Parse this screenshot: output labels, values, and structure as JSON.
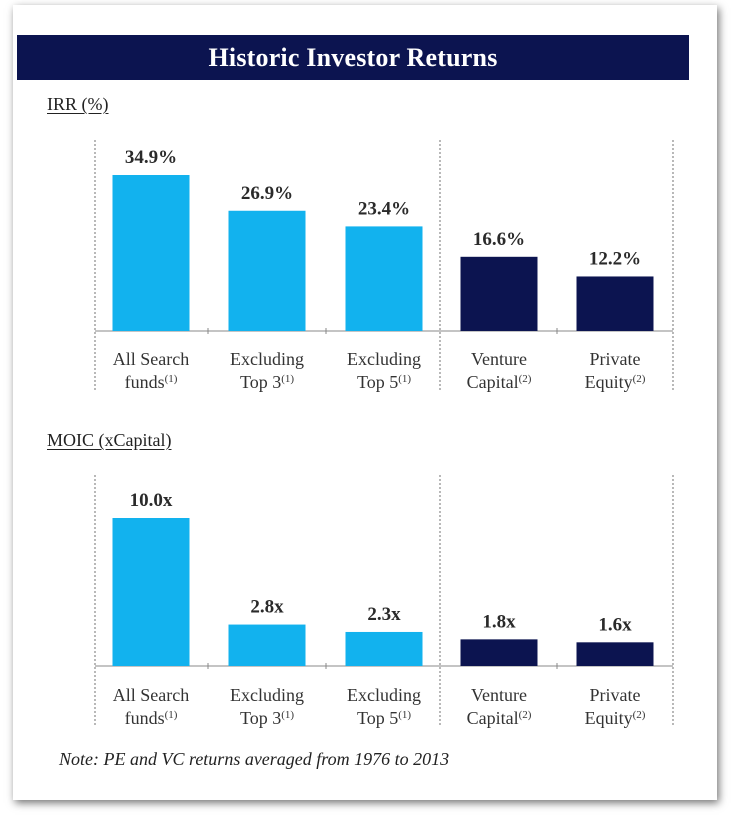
{
  "title": "Historic Investor Returns",
  "note": "Note: PE and VC returns averaged from 1976 to 2013",
  "colors": {
    "header": "#0c1450",
    "search_funds": "#12b2ee",
    "benchmarks": "#0c1450"
  },
  "chart_data": [
    {
      "type": "bar",
      "title": "IRR (%)",
      "unit": "%",
      "categories": [
        {
          "line1": "All Search",
          "line2": "funds",
          "footnote": "(1)"
        },
        {
          "line1": "Excluding",
          "line2": "Top 3",
          "footnote": "(1)"
        },
        {
          "line1": "Excluding",
          "line2": "Top 5",
          "footnote": "(1)"
        },
        {
          "line1": "Venture",
          "line2": "Capital",
          "footnote": "(2)"
        },
        {
          "line1": "Private",
          "line2": "Equity",
          "footnote": "(2)"
        }
      ],
      "values": [
        34.9,
        26.9,
        23.4,
        16.6,
        12.2
      ],
      "value_labels": [
        "34.9%",
        "26.9%",
        "23.4%",
        "16.6%",
        "12.2%"
      ],
      "bar_colors": [
        "#12b2ee",
        "#12b2ee",
        "#12b2ee",
        "#0c1450",
        "#0c1450"
      ],
      "ylim": [
        0,
        34.9
      ]
    },
    {
      "type": "bar",
      "title": "MOIC (xCapital)",
      "unit": "x",
      "categories": [
        {
          "line1": "All Search",
          "line2": "funds",
          "footnote": "(1)"
        },
        {
          "line1": "Excluding",
          "line2": "Top 3",
          "footnote": "(1)"
        },
        {
          "line1": "Excluding",
          "line2": "Top 5",
          "footnote": "(1)"
        },
        {
          "line1": "Venture",
          "line2": "Capital",
          "footnote": "(2)"
        },
        {
          "line1": "Private",
          "line2": "Equity",
          "footnote": "(2)"
        }
      ],
      "values": [
        10.0,
        2.8,
        2.3,
        1.8,
        1.6
      ],
      "value_labels": [
        "10.0x",
        "2.8x",
        "2.3x",
        "1.8x",
        "1.6x"
      ],
      "bar_colors": [
        "#12b2ee",
        "#12b2ee",
        "#12b2ee",
        "#0c1450",
        "#0c1450"
      ],
      "ylim": [
        0,
        10.0
      ]
    }
  ]
}
